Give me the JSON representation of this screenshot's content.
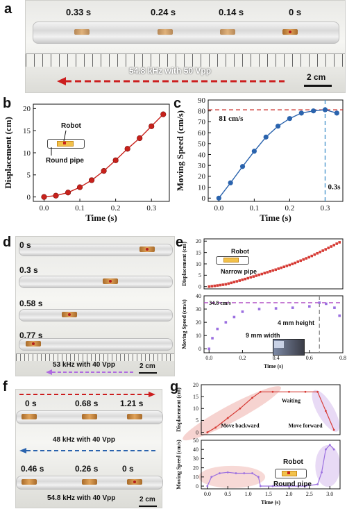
{
  "panel_letters": [
    "a",
    "b",
    "c",
    "d",
    "e",
    "f",
    "g"
  ],
  "panel_a": {
    "times": [
      "0.33 s",
      "0.24 s",
      "0.14 s",
      "0 s"
    ],
    "caption": "54.8 kHz with 50 Vpp",
    "scale": "2 cm"
  },
  "panel_d": {
    "times": [
      "0 s",
      "0.3 s",
      "0.58 s",
      "0.77 s"
    ],
    "caption": "53 kHz with 40 Vpp",
    "scale": "2 cm"
  },
  "panel_f": {
    "times_top": [
      "0 s",
      "0.68 s",
      "1.21 s"
    ],
    "caption_top": "48 kHz with 40 Vpp",
    "times_bottom": [
      "0.46 s",
      "0.26 s",
      "0 s"
    ],
    "caption_bottom": "54.8 kHz with 40 Vpp",
    "scale": "2 cm"
  },
  "inset_b": {
    "robot": "Robot",
    "pipe": "Round pipe"
  },
  "inset_e": {
    "robot": "Robot",
    "pipe": "Narrow pipe",
    "height": "4 mm height",
    "width": "9 mm width"
  },
  "inset_g": {
    "robot": "Robot",
    "pipe": "Round pipe"
  },
  "chart_data": [
    {
      "id": "b",
      "type": "line",
      "xlabel": "Time (s)",
      "ylabel": "Displacement (cm)",
      "xlim": [
        -0.03,
        0.35
      ],
      "ylim": [
        -1,
        21
      ],
      "xticks": [
        0.0,
        0.1,
        0.2,
        0.3
      ],
      "xtick_labels": [
        "0.0",
        "0.1",
        "0.2",
        "0.3"
      ],
      "yticks": [
        0,
        5,
        10,
        15,
        20
      ],
      "ytick_labels": [
        "0",
        "5",
        "10",
        "15",
        "20"
      ],
      "series": [
        {
          "color": "#c8211b",
          "x": [
            0,
            0.033,
            0.067,
            0.1,
            0.133,
            0.167,
            0.2,
            0.233,
            0.267,
            0.3,
            0.333
          ],
          "y": [
            0,
            0.3,
            1.0,
            2.2,
            3.8,
            5.9,
            8.3,
            10.9,
            13.3,
            16.0,
            18.7
          ]
        }
      ]
    },
    {
      "id": "c",
      "type": "line",
      "xlabel": "Time (s)",
      "ylabel": "Moving Speed (cm/s)",
      "xlim": [
        -0.03,
        0.35
      ],
      "ylim": [
        -3,
        90
      ],
      "xticks": [
        0.0,
        0.1,
        0.2,
        0.3
      ],
      "xtick_labels": [
        "0.0",
        "0.1",
        "0.2",
        "0.3"
      ],
      "yticks": [
        0,
        10,
        20,
        30,
        40,
        50,
        60,
        70,
        80,
        90
      ],
      "ytick_labels": [
        "0",
        "10",
        "20",
        "30",
        "40",
        "50",
        "60",
        "70",
        "80",
        "90"
      ],
      "hline": {
        "y": 81,
        "label": "81 cm/s",
        "color": "#c8211b"
      },
      "vline": {
        "x": 0.3,
        "label": "0.3s",
        "color": "#3d8ec9"
      },
      "series": [
        {
          "color": "#2a63ad",
          "x": [
            0,
            0.033,
            0.067,
            0.1,
            0.133,
            0.167,
            0.2,
            0.233,
            0.267,
            0.3,
            0.333
          ],
          "y": [
            0,
            14,
            29,
            43,
            56,
            66,
            73,
            78,
            80,
            81,
            78
          ]
        }
      ]
    },
    {
      "id": "e_top",
      "type": "scatter",
      "ylabel": "Displacement (cm)",
      "xlim": [
        -0.03,
        0.8
      ],
      "ylim": [
        -1,
        21
      ],
      "yticks": [
        0,
        5,
        10,
        15,
        20
      ],
      "ytick_labels": [
        "0",
        "5",
        "10",
        "15",
        "20"
      ],
      "series": [
        {
          "color": "#d63b35",
          "n": 48,
          "x": [
            0,
            0.1,
            0.2,
            0.3,
            0.4,
            0.5,
            0.6,
            0.7,
            0.78
          ],
          "y": [
            0,
            1.0,
            3.0,
            5.2,
            7.5,
            10.0,
            13.0,
            16.5,
            19.5
          ]
        }
      ]
    },
    {
      "id": "e_bottom",
      "type": "scatter",
      "xlabel": "Time (s)",
      "ylabel": "Moving Speed (cm/s)",
      "xlim": [
        -0.03,
        0.8
      ],
      "ylim": [
        -3,
        40
      ],
      "xticks": [
        0.0,
        0.2,
        0.4,
        0.6,
        0.8
      ],
      "xtick_labels": [
        "0.0",
        "0.2",
        "0.4",
        "0.6",
        "0.8"
      ],
      "yticks": [
        0,
        10,
        20,
        30,
        40
      ],
      "ytick_labels": [
        "0",
        "10",
        "20",
        "30",
        "40"
      ],
      "hline": {
        "y": 34.8,
        "label": "34.8 cm/s",
        "color": "#b04dc4"
      },
      "vline": {
        "x": 0.66,
        "color": "#888888"
      },
      "series": [
        {
          "color": "#9b6fe0",
          "x": [
            0,
            0.02,
            0.05,
            0.1,
            0.15,
            0.2,
            0.3,
            0.4,
            0.5,
            0.6,
            0.66,
            0.7,
            0.75,
            0.78
          ],
          "y": [
            0,
            8,
            15,
            20,
            24,
            28,
            30,
            30.5,
            31,
            32,
            34.8,
            34,
            31,
            25
          ]
        }
      ]
    },
    {
      "id": "g_top",
      "type": "scatter",
      "ylabel": "Displacement (cm)",
      "xlim": [
        -0.15,
        3.25
      ],
      "ylim": [
        -1,
        20
      ],
      "yticks": [
        0,
        5,
        10,
        15,
        20
      ],
      "ytick_labels": [
        "0",
        "5",
        "10",
        "15",
        "20"
      ],
      "annotations": [
        "Waiting",
        "Move backward",
        "Move forward"
      ],
      "series": [
        {
          "color": "#d63b35",
          "x": [
            0,
            0.2,
            0.5,
            0.8,
            1.1,
            1.3,
            1.6,
            2.0,
            2.4,
            2.7,
            2.9,
            3.1
          ],
          "y": [
            0,
            2,
            6,
            10,
            14.5,
            17,
            17,
            17,
            17,
            17,
            9,
            1
          ]
        }
      ]
    },
    {
      "id": "g_bottom",
      "type": "scatter",
      "xlabel": "Time (s)",
      "ylabel": "Moving Speed (cm/s)",
      "xlim": [
        -0.15,
        3.25
      ],
      "ylim": [
        -3,
        50
      ],
      "xticks": [
        0.0,
        0.5,
        1.0,
        1.5,
        2.0,
        2.5,
        3.0
      ],
      "xtick_labels": [
        "0.0",
        "0.5",
        "1.0",
        "1.5",
        "2.0",
        "2.5",
        "3.0"
      ],
      "yticks": [
        0,
        10,
        20,
        30,
        40,
        50
      ],
      "ytick_labels": [
        "0",
        "10",
        "20",
        "30",
        "40",
        "50"
      ],
      "series": [
        {
          "color": "#9b6fe0",
          "x": [
            0,
            0.1,
            0.3,
            0.5,
            0.7,
            0.9,
            1.1,
            1.25,
            1.3,
            1.6,
            2.0,
            2.4,
            2.7,
            2.8,
            2.9,
            3.0,
            3.1
          ],
          "y": [
            0,
            10,
            14,
            15,
            14,
            14,
            14,
            10,
            0,
            0,
            0,
            0,
            2,
            15,
            40,
            45,
            40
          ]
        }
      ]
    }
  ]
}
